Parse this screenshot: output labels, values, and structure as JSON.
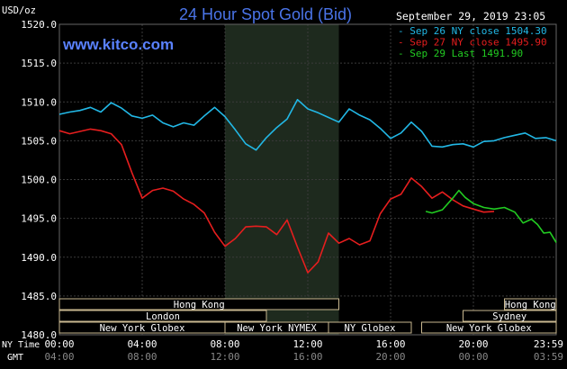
{
  "chart_data": {
    "type": "line",
    "title": "24 Hour Spot Gold (Bid)",
    "watermark": "www.kitco.com",
    "timestamp": "September 29, 2019 23:05",
    "yunit": "USD/oz",
    "ylim": [
      1480,
      1520
    ],
    "y_ticks": [
      "1520.0",
      "1515.0",
      "1510.0",
      "1505.0",
      "1500.0",
      "1495.0",
      "1490.0",
      "1485.0",
      "1480.0"
    ],
    "xlim": [
      0,
      24
    ],
    "x_ticks_ny": [
      "00:00",
      "04:00",
      "08:00",
      "12:00",
      "16:00",
      "20:00",
      "23:59"
    ],
    "x_ticks_gmt": [
      "04:00",
      "08:00",
      "12:00",
      "16:00",
      "20:00",
      "00:00",
      "03:59"
    ],
    "x_row_labels": [
      "NY Time",
      "GMT"
    ],
    "highlight_hours": [
      8.0,
      13.5
    ],
    "grid": true,
    "legend": "top-right",
    "series": [
      {
        "name": "Sep 26 NY close",
        "label_value": "1504.30",
        "color": "#22b8e6",
        "points": [
          [
            0.0,
            1508.4
          ],
          [
            0.5,
            1508.7
          ],
          [
            1.0,
            1508.9
          ],
          [
            1.5,
            1509.3
          ],
          [
            2.0,
            1508.7
          ],
          [
            2.5,
            1509.9
          ],
          [
            3.0,
            1509.2
          ],
          [
            3.5,
            1508.2
          ],
          [
            4.0,
            1507.9
          ],
          [
            4.5,
            1508.3
          ],
          [
            5.0,
            1507.3
          ],
          [
            5.5,
            1506.8
          ],
          [
            6.0,
            1507.3
          ],
          [
            6.5,
            1507.0
          ],
          [
            7.0,
            1508.2
          ],
          [
            7.5,
            1509.3
          ],
          [
            8.0,
            1508.1
          ],
          [
            8.5,
            1506.4
          ],
          [
            9.0,
            1504.6
          ],
          [
            9.5,
            1503.8
          ],
          [
            10.0,
            1505.4
          ],
          [
            10.5,
            1506.7
          ],
          [
            11.0,
            1507.8
          ],
          [
            11.5,
            1510.3
          ],
          [
            12.0,
            1509.1
          ],
          [
            12.5,
            1508.6
          ],
          [
            13.0,
            1508.0
          ],
          [
            13.5,
            1507.4
          ],
          [
            14.0,
            1509.1
          ],
          [
            14.5,
            1508.3
          ],
          [
            15.0,
            1507.7
          ],
          [
            15.5,
            1506.6
          ],
          [
            16.0,
            1505.3
          ],
          [
            16.5,
            1506.0
          ],
          [
            17.0,
            1507.4
          ],
          [
            17.5,
            1506.2
          ],
          [
            18.0,
            1504.3
          ],
          [
            18.5,
            1504.2
          ],
          [
            19.0,
            1504.5
          ],
          [
            19.5,
            1504.6
          ],
          [
            20.0,
            1504.2
          ],
          [
            20.5,
            1504.9
          ],
          [
            21.0,
            1505.0
          ],
          [
            21.5,
            1505.4
          ],
          [
            22.0,
            1505.7
          ],
          [
            22.5,
            1506.0
          ],
          [
            23.0,
            1505.3
          ],
          [
            23.5,
            1505.4
          ],
          [
            24.0,
            1505.0
          ]
        ]
      },
      {
        "name": "Sep 27 NY close",
        "label_value": "1495.90",
        "color": "#e61e1e",
        "points": [
          [
            0.0,
            1506.3
          ],
          [
            0.5,
            1505.9
          ],
          [
            1.0,
            1506.2
          ],
          [
            1.5,
            1506.5
          ],
          [
            2.0,
            1506.3
          ],
          [
            2.5,
            1505.9
          ],
          [
            3.0,
            1504.5
          ],
          [
            3.5,
            1500.9
          ],
          [
            4.0,
            1497.6
          ],
          [
            4.5,
            1498.6
          ],
          [
            5.0,
            1498.9
          ],
          [
            5.5,
            1498.5
          ],
          [
            6.0,
            1497.5
          ],
          [
            6.5,
            1496.8
          ],
          [
            7.0,
            1495.7
          ],
          [
            7.5,
            1493.2
          ],
          [
            8.0,
            1491.4
          ],
          [
            8.5,
            1492.4
          ],
          [
            9.0,
            1493.9
          ],
          [
            9.5,
            1494.0
          ],
          [
            10.0,
            1493.9
          ],
          [
            10.5,
            1492.9
          ],
          [
            11.0,
            1494.8
          ],
          [
            11.5,
            1491.3
          ],
          [
            12.0,
            1488.0
          ],
          [
            12.5,
            1489.4
          ],
          [
            13.0,
            1493.1
          ],
          [
            13.5,
            1491.8
          ],
          [
            14.0,
            1492.4
          ],
          [
            14.5,
            1491.6
          ],
          [
            15.0,
            1492.1
          ],
          [
            15.5,
            1495.6
          ],
          [
            16.0,
            1497.5
          ],
          [
            16.5,
            1498.1
          ],
          [
            17.0,
            1500.2
          ],
          [
            17.5,
            1499.1
          ],
          [
            18.0,
            1497.6
          ],
          [
            18.5,
            1498.4
          ],
          [
            19.0,
            1497.4
          ],
          [
            19.5,
            1496.6
          ],
          [
            20.0,
            1496.2
          ],
          [
            20.5,
            1495.8
          ],
          [
            21.0,
            1495.9
          ]
        ]
      },
      {
        "name": "Sep 29 Last",
        "label_value": "1491.90",
        "color": "#22cc22",
        "points": [
          [
            17.7,
            1495.9
          ],
          [
            18.0,
            1495.7
          ],
          [
            18.5,
            1496.1
          ],
          [
            19.0,
            1497.6
          ],
          [
            19.3,
            1498.6
          ],
          [
            19.6,
            1497.7
          ],
          [
            20.0,
            1496.9
          ],
          [
            20.5,
            1496.4
          ],
          [
            21.0,
            1496.2
          ],
          [
            21.5,
            1496.4
          ],
          [
            22.0,
            1495.8
          ],
          [
            22.4,
            1494.4
          ],
          [
            22.8,
            1494.9
          ],
          [
            23.1,
            1494.2
          ],
          [
            23.4,
            1493.1
          ],
          [
            23.7,
            1493.2
          ],
          [
            24.0,
            1491.9
          ]
        ]
      }
    ],
    "sessions": [
      {
        "label": "Hong Kong",
        "start": 21.5,
        "end": 24.0,
        "row": 0
      },
      {
        "label": "Hong Kong",
        "start": 0.0,
        "end": 13.5,
        "row": 0
      },
      {
        "label": "Sydney",
        "start": 19.5,
        "end": 24.0,
        "row": 1
      },
      {
        "label": "London",
        "start": 0.0,
        "end": 10.0,
        "row": 1
      },
      {
        "label": "New York Globex",
        "start": 0.0,
        "end": 8.0,
        "row": 2
      },
      {
        "label": "New York NYMEX",
        "start": 8.0,
        "end": 13.0,
        "row": 2
      },
      {
        "label": "NY Globex",
        "start": 13.0,
        "end": 17.0,
        "row": 2
      },
      {
        "label": "New York Globex",
        "start": 17.5,
        "end": 24.0,
        "row": 2
      }
    ]
  }
}
